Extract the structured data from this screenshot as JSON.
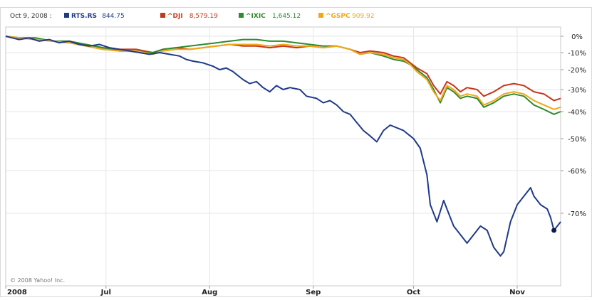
{
  "chart_data": {
    "type": "line",
    "legend": {
      "date": "Oct 9, 2008 :",
      "placement": "top",
      "entries": [
        {
          "symbol": "RTS.RS",
          "value": "844.75",
          "color": "#1f3a8a",
          "marker": "square"
        },
        {
          "symbol": "^DJI",
          "value": "8,579.19",
          "color": "#c8361b",
          "marker": "square"
        },
        {
          "symbol": "^IXIC",
          "value": "1,645.12",
          "color": "#2e8b2e",
          "marker": "square"
        },
        {
          "symbol": "^GSPC",
          "value": "909.92",
          "color": "#f0a818",
          "marker": "square"
        }
      ]
    },
    "y_axis": {
      "position": "right",
      "scale": "percent change",
      "ticks": [
        {
          "label": "0%",
          "value": 0
        },
        {
          "label": "-10%",
          "value": -10
        },
        {
          "label": "-20%",
          "value": -20
        },
        {
          "label": "-30%",
          "value": -30
        },
        {
          "label": "-40%",
          "value": -40
        },
        {
          "label": "-50%",
          "value": -50
        },
        {
          "label": "-60%",
          "value": -60
        },
        {
          "label": "-70%",
          "value": -70
        }
      ]
    },
    "x_axis": {
      "range": [
        "2008-06-01",
        "2008-11-14"
      ],
      "ticks": [
        {
          "label": "2008",
          "date": "2008-06-01"
        },
        {
          "label": "Jul",
          "date": "2008-07-01"
        },
        {
          "label": "Aug",
          "date": "2008-08-01"
        },
        {
          "label": "Sep",
          "date": "2008-09-01"
        },
        {
          "label": "Oct",
          "date": "2008-10-01"
        },
        {
          "label": "Nov",
          "date": "2008-11-01"
        }
      ]
    },
    "grid": true,
    "series": [
      {
        "name": "RTS.RS",
        "color": "#1f3a8a",
        "points": [
          [
            "2008-06-01",
            0
          ],
          [
            "2008-06-03",
            -1
          ],
          [
            "2008-06-05",
            -2
          ],
          [
            "2008-06-08",
            -1
          ],
          [
            "2008-06-11",
            -3
          ],
          [
            "2008-06-14",
            -2
          ],
          [
            "2008-06-17",
            -4
          ],
          [
            "2008-06-20",
            -3
          ],
          [
            "2008-06-23",
            -5
          ],
          [
            "2008-06-26",
            -6
          ],
          [
            "2008-06-29",
            -5
          ],
          [
            "2008-07-02",
            -7
          ],
          [
            "2008-07-05",
            -8
          ],
          [
            "2008-07-08",
            -9
          ],
          [
            "2008-07-11",
            -10
          ],
          [
            "2008-07-14",
            -11
          ],
          [
            "2008-07-17",
            -10
          ],
          [
            "2008-07-20",
            -11
          ],
          [
            "2008-07-23",
            -12
          ],
          [
            "2008-07-25",
            -14
          ],
          [
            "2008-07-27",
            -15
          ],
          [
            "2008-07-30",
            -16
          ],
          [
            "2008-08-02",
            -18
          ],
          [
            "2008-08-04",
            -20
          ],
          [
            "2008-08-06",
            -19
          ],
          [
            "2008-08-08",
            -21
          ],
          [
            "2008-08-11",
            -25
          ],
          [
            "2008-08-13",
            -27
          ],
          [
            "2008-08-15",
            -26
          ],
          [
            "2008-08-17",
            -29
          ],
          [
            "2008-08-19",
            -31
          ],
          [
            "2008-08-21",
            -28
          ],
          [
            "2008-08-23",
            -30
          ],
          [
            "2008-08-25",
            -29
          ],
          [
            "2008-08-28",
            -30
          ],
          [
            "2008-08-30",
            -33
          ],
          [
            "2008-09-02",
            -34
          ],
          [
            "2008-09-04",
            -36
          ],
          [
            "2008-09-06",
            -35
          ],
          [
            "2008-09-08",
            -37
          ],
          [
            "2008-09-10",
            -40
          ],
          [
            "2008-09-12",
            -41
          ],
          [
            "2008-09-14",
            -44
          ],
          [
            "2008-09-16",
            -47
          ],
          [
            "2008-09-18",
            -49
          ],
          [
            "2008-09-20",
            -51
          ],
          [
            "2008-09-22",
            -47
          ],
          [
            "2008-09-24",
            -45
          ],
          [
            "2008-09-26",
            -46
          ],
          [
            "2008-09-28",
            -47
          ],
          [
            "2008-09-30",
            -49
          ],
          [
            "2008-10-01",
            -50
          ],
          [
            "2008-10-03",
            -53
          ],
          [
            "2008-10-05",
            -61
          ],
          [
            "2008-10-06",
            -68
          ],
          [
            "2008-10-08",
            -72
          ],
          [
            "2008-10-10",
            -67
          ],
          [
            "2008-10-11",
            -69
          ],
          [
            "2008-10-13",
            -73
          ],
          [
            "2008-10-15",
            -75
          ],
          [
            "2008-10-17",
            -77
          ],
          [
            "2008-10-19",
            -75
          ],
          [
            "2008-10-21",
            -73
          ],
          [
            "2008-10-23",
            -74
          ],
          [
            "2008-10-25",
            -78
          ],
          [
            "2008-10-27",
            -80
          ],
          [
            "2008-10-28",
            -79
          ],
          [
            "2008-10-30",
            -72
          ],
          [
            "2008-11-01",
            -68
          ],
          [
            "2008-11-03",
            -66
          ],
          [
            "2008-11-05",
            -64
          ],
          [
            "2008-11-06",
            -66
          ],
          [
            "2008-11-08",
            -68
          ],
          [
            "2008-11-10",
            -69
          ],
          [
            "2008-11-11",
            -71
          ],
          [
            "2008-11-12",
            -74
          ],
          [
            "2008-11-13",
            -73
          ],
          [
            "2008-11-14",
            -72
          ]
        ],
        "marker": {
          "date": "2008-11-12",
          "value": -74
        }
      },
      {
        "name": "^DJI",
        "color": "#c8361b",
        "points": [
          [
            "2008-06-01",
            0
          ],
          [
            "2008-06-05",
            -1
          ],
          [
            "2008-06-10",
            -2
          ],
          [
            "2008-06-15",
            -3
          ],
          [
            "2008-06-20",
            -4
          ],
          [
            "2008-06-25",
            -5
          ],
          [
            "2008-06-30",
            -7
          ],
          [
            "2008-07-05",
            -8
          ],
          [
            "2008-07-10",
            -8
          ],
          [
            "2008-07-15",
            -10
          ],
          [
            "2008-07-18",
            -8
          ],
          [
            "2008-07-22",
            -7
          ],
          [
            "2008-07-26",
            -8
          ],
          [
            "2008-07-30",
            -7
          ],
          [
            "2008-08-03",
            -6
          ],
          [
            "2008-08-07",
            -5
          ],
          [
            "2008-08-11",
            -6
          ],
          [
            "2008-08-15",
            -6
          ],
          [
            "2008-08-19",
            -7
          ],
          [
            "2008-08-23",
            -6
          ],
          [
            "2008-08-27",
            -7
          ],
          [
            "2008-08-31",
            -6
          ],
          [
            "2008-09-04",
            -7
          ],
          [
            "2008-09-08",
            -6
          ],
          [
            "2008-09-12",
            -8
          ],
          [
            "2008-09-15",
            -10
          ],
          [
            "2008-09-18",
            -9
          ],
          [
            "2008-09-22",
            -10
          ],
          [
            "2008-09-25",
            -12
          ],
          [
            "2008-09-28",
            -13
          ],
          [
            "2008-09-30",
            -16
          ],
          [
            "2008-10-02",
            -19
          ],
          [
            "2008-10-05",
            -22
          ],
          [
            "2008-10-07",
            -28
          ],
          [
            "2008-10-09",
            -32
          ],
          [
            "2008-10-11",
            -26
          ],
          [
            "2008-10-13",
            -28
          ],
          [
            "2008-10-15",
            -31
          ],
          [
            "2008-10-17",
            -29
          ],
          [
            "2008-10-20",
            -30
          ],
          [
            "2008-10-22",
            -33
          ],
          [
            "2008-10-25",
            -31
          ],
          [
            "2008-10-28",
            -28
          ],
          [
            "2008-10-31",
            -27
          ],
          [
            "2008-11-03",
            -28
          ],
          [
            "2008-11-06",
            -31
          ],
          [
            "2008-11-09",
            -32
          ],
          [
            "2008-11-12",
            -35
          ],
          [
            "2008-11-14",
            -34
          ]
        ]
      },
      {
        "name": "^IXIC",
        "color": "#2e8b2e",
        "points": [
          [
            "2008-06-01",
            0
          ],
          [
            "2008-06-05",
            -1
          ],
          [
            "2008-06-10",
            -1
          ],
          [
            "2008-06-15",
            -3
          ],
          [
            "2008-06-20",
            -3
          ],
          [
            "2008-06-25",
            -5
          ],
          [
            "2008-06-30",
            -7
          ],
          [
            "2008-07-05",
            -9
          ],
          [
            "2008-07-10",
            -9
          ],
          [
            "2008-07-15",
            -10
          ],
          [
            "2008-07-18",
            -8
          ],
          [
            "2008-07-22",
            -7
          ],
          [
            "2008-07-26",
            -6
          ],
          [
            "2008-07-30",
            -5
          ],
          [
            "2008-08-03",
            -4
          ],
          [
            "2008-08-07",
            -3
          ],
          [
            "2008-08-11",
            -2
          ],
          [
            "2008-08-15",
            -2
          ],
          [
            "2008-08-19",
            -3
          ],
          [
            "2008-08-23",
            -3
          ],
          [
            "2008-08-27",
            -4
          ],
          [
            "2008-08-31",
            -5
          ],
          [
            "2008-09-04",
            -6
          ],
          [
            "2008-09-08",
            -6
          ],
          [
            "2008-09-12",
            -8
          ],
          [
            "2008-09-15",
            -11
          ],
          [
            "2008-09-18",
            -10
          ],
          [
            "2008-09-22",
            -12
          ],
          [
            "2008-09-25",
            -14
          ],
          [
            "2008-09-28",
            -15
          ],
          [
            "2008-09-30",
            -17
          ],
          [
            "2008-10-02",
            -20
          ],
          [
            "2008-10-05",
            -24
          ],
          [
            "2008-10-07",
            -30
          ],
          [
            "2008-10-09",
            -36
          ],
          [
            "2008-10-11",
            -29
          ],
          [
            "2008-10-13",
            -31
          ],
          [
            "2008-10-15",
            -34
          ],
          [
            "2008-10-17",
            -33
          ],
          [
            "2008-10-20",
            -34
          ],
          [
            "2008-10-22",
            -38
          ],
          [
            "2008-10-25",
            -36
          ],
          [
            "2008-10-28",
            -33
          ],
          [
            "2008-10-31",
            -32
          ],
          [
            "2008-11-03",
            -33
          ],
          [
            "2008-11-06",
            -37
          ],
          [
            "2008-11-09",
            -39
          ],
          [
            "2008-11-12",
            -41
          ],
          [
            "2008-11-14",
            -40
          ]
        ]
      },
      {
        "name": "^GSPC",
        "color": "#f0a818",
        "points": [
          [
            "2008-06-01",
            0
          ],
          [
            "2008-06-05",
            -1
          ],
          [
            "2008-06-10",
            -2
          ],
          [
            "2008-06-15",
            -3
          ],
          [
            "2008-06-20",
            -4
          ],
          [
            "2008-06-25",
            -6
          ],
          [
            "2008-06-30",
            -8
          ],
          [
            "2008-07-05",
            -9
          ],
          [
            "2008-07-10",
            -9
          ],
          [
            "2008-07-15",
            -11
          ],
          [
            "2008-07-18",
            -9
          ],
          [
            "2008-07-22",
            -8
          ],
          [
            "2008-07-26",
            -8
          ],
          [
            "2008-07-30",
            -7
          ],
          [
            "2008-08-03",
            -6
          ],
          [
            "2008-08-07",
            -5
          ],
          [
            "2008-08-11",
            -5
          ],
          [
            "2008-08-15",
            -5
          ],
          [
            "2008-08-19",
            -6
          ],
          [
            "2008-08-23",
            -5
          ],
          [
            "2008-08-27",
            -6
          ],
          [
            "2008-08-31",
            -6
          ],
          [
            "2008-09-04",
            -7
          ],
          [
            "2008-09-08",
            -6
          ],
          [
            "2008-09-12",
            -8
          ],
          [
            "2008-09-15",
            -11
          ],
          [
            "2008-09-18",
            -10
          ],
          [
            "2008-09-22",
            -11
          ],
          [
            "2008-09-25",
            -13
          ],
          [
            "2008-09-28",
            -14
          ],
          [
            "2008-09-30",
            -17
          ],
          [
            "2008-10-02",
            -21
          ],
          [
            "2008-10-05",
            -25
          ],
          [
            "2008-10-07",
            -31
          ],
          [
            "2008-10-09",
            -35
          ],
          [
            "2008-10-11",
            -28
          ],
          [
            "2008-10-13",
            -30
          ],
          [
            "2008-10-15",
            -33
          ],
          [
            "2008-10-17",
            -32
          ],
          [
            "2008-10-20",
            -33
          ],
          [
            "2008-10-22",
            -37
          ],
          [
            "2008-10-25",
            -35
          ],
          [
            "2008-10-28",
            -32
          ],
          [
            "2008-10-31",
            -31
          ],
          [
            "2008-11-03",
            -32
          ],
          [
            "2008-11-06",
            -35
          ],
          [
            "2008-11-09",
            -37
          ],
          [
            "2008-11-12",
            -39
          ],
          [
            "2008-11-14",
            -38
          ]
        ]
      }
    ]
  },
  "footer": {
    "copyright": "© 2008 Yahoo! Inc."
  }
}
